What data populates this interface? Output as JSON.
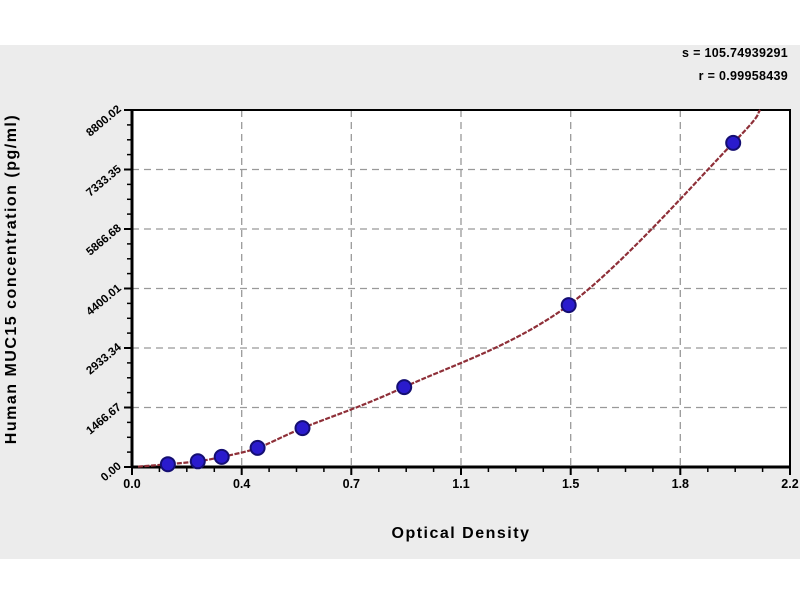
{
  "chart_data": {
    "type": "scatter",
    "title": "",
    "xlabel": "Optical Density",
    "ylabel": "Human MUC15 concentration (pg/ml)",
    "xlim": [
      0,
      2.2
    ],
    "ylim": [
      0,
      8800.02
    ],
    "grid": true,
    "x_tick_labels": [
      "0.0",
      "0.4",
      "0.7",
      "1.1",
      "1.5",
      "1.8",
      "2.2"
    ],
    "y_tick_labels": [
      "0.00",
      "1466.67",
      "2933.34",
      "4400.01",
      "5866.68",
      "7333.35",
      "8800.02"
    ],
    "x": [
      0.12,
      0.22,
      0.3,
      0.42,
      0.57,
      0.91,
      1.46,
      2.01
    ],
    "y": [
      70,
      140,
      250,
      470,
      960,
      1970,
      3990,
      7990
    ],
    "fit_curve": {
      "present": true,
      "start": [
        0.02,
        10
      ],
      "end": [
        2.1,
        8800.02
      ]
    },
    "annotations": [
      "s = 105.74939291",
      "r = 0.99958439"
    ],
    "legend": "none",
    "colors": {
      "point": "#2a1bcd",
      "point_edge": "#140e72",
      "curve": "#8e2f38",
      "grid": "#999999",
      "axis": "#000000",
      "plot_bg": "#ffffff",
      "page_bg": "#ececec"
    }
  }
}
